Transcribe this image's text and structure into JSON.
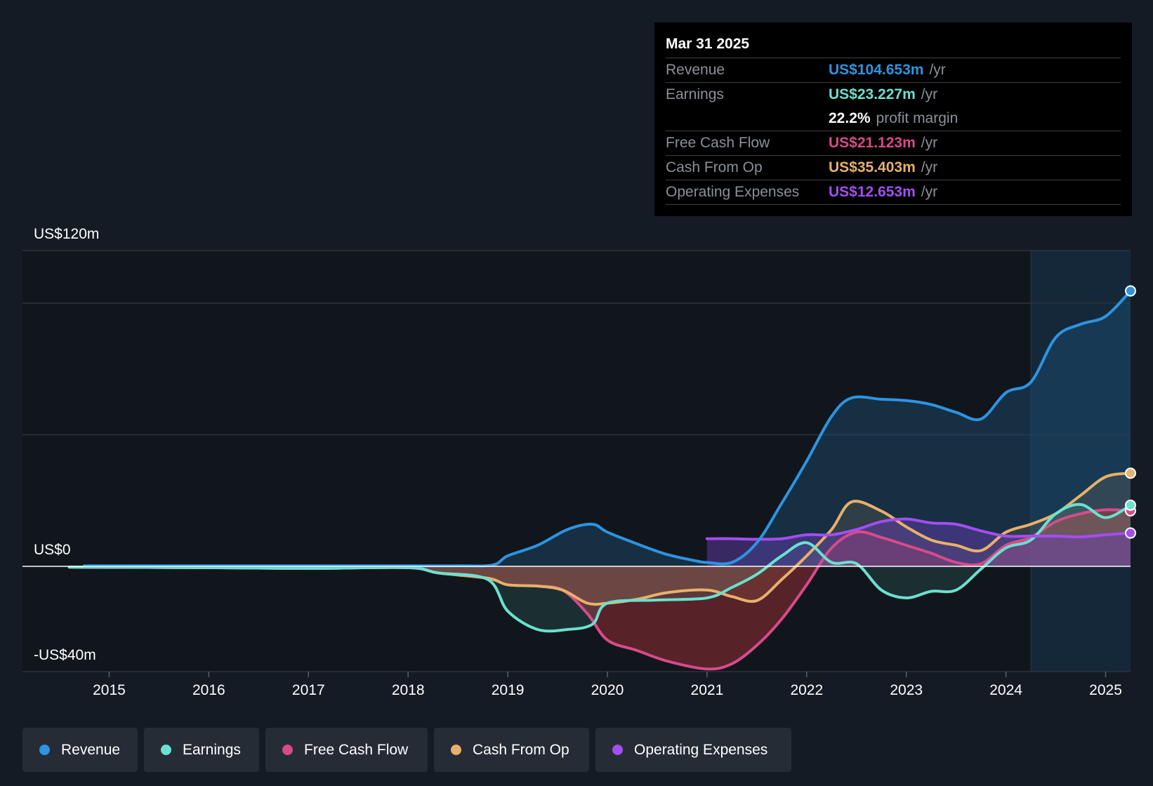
{
  "tooltip": {
    "date": "Mar 31 2025",
    "rows": [
      {
        "label": "Revenue",
        "value": "US$104.653m",
        "unit": "/yr",
        "color": "#2d94e2"
      },
      {
        "label": "Earnings",
        "value": "US$23.227m",
        "unit": "/yr",
        "color": "#6be0d0"
      },
      {
        "label": "",
        "value": "22.2%",
        "unit": "profit margin",
        "color": "#ffffff"
      },
      {
        "label": "Free Cash Flow",
        "value": "US$21.123m",
        "unit": "/yr",
        "color": "#d64b8a"
      },
      {
        "label": "Cash From Op",
        "value": "US$35.403m",
        "unit": "/yr",
        "color": "#e8b06a"
      },
      {
        "label": "Operating Expenses",
        "value": "US$12.653m",
        "unit": "/yr",
        "color": "#a24ef0"
      }
    ]
  },
  "legend": [
    {
      "label": "Revenue",
      "color": "#2d94e2"
    },
    {
      "label": "Earnings",
      "color": "#6be0d0"
    },
    {
      "label": "Free Cash Flow",
      "color": "#d64b8a"
    },
    {
      "label": "Cash From Op",
      "color": "#e8b06a"
    },
    {
      "label": "Operating Expenses",
      "color": "#a24ef0"
    }
  ],
  "chart_data": {
    "type": "line",
    "title": "",
    "y_labels": {
      "top": "US$120m",
      "zero": "US$0",
      "bottom": "-US$40m"
    },
    "ylim": [
      -40,
      120
    ],
    "xlim": [
      2014.13,
      2025.25
    ],
    "x_ticks": [
      2015,
      2016,
      2017,
      2018,
      2019,
      2020,
      2021,
      2022,
      2023,
      2024,
      2025
    ],
    "x_tick_labels": [
      "2015",
      "2016",
      "2017",
      "2018",
      "2019",
      "2020",
      "2021",
      "2022",
      "2023",
      "2024",
      "2025"
    ],
    "gridlines": [
      -40,
      0,
      50,
      100,
      120
    ],
    "highlight_start": 2024.25,
    "series": [
      {
        "name": "Revenue",
        "color": "#2d94e2",
        "x": [
          2014.75,
          2016,
          2017,
          2018,
          2018.5,
          2018.85,
          2019.0,
          2019.3,
          2019.6,
          2019.85,
          2020.0,
          2020.3,
          2020.6,
          2020.9,
          2021.0,
          2021.25,
          2021.5,
          2021.75,
          2022.0,
          2022.25,
          2022.45,
          2022.75,
          2023.0,
          2023.25,
          2023.5,
          2023.75,
          2024.0,
          2024.25,
          2024.5,
          2024.75,
          2025.0,
          2025.25
        ],
        "y": [
          0.2,
          0.2,
          0.2,
          0.2,
          0.2,
          0.5,
          4,
          8,
          14,
          16,
          13,
          8.5,
          4.5,
          2,
          1.5,
          1.5,
          9,
          24,
          40,
          57,
          64,
          63.5,
          63,
          61.5,
          58.5,
          56,
          66,
          70,
          87,
          92,
          95,
          104.653
        ]
      },
      {
        "name": "Earnings",
        "color": "#6be0d0",
        "x": [
          2014.6,
          2016,
          2017,
          2018,
          2018.3,
          2018.8,
          2019.0,
          2019.3,
          2019.6,
          2019.85,
          2020.0,
          2020.5,
          2021.0,
          2021.25,
          2021.5,
          2021.75,
          2022.0,
          2022.25,
          2022.5,
          2022.75,
          2023.0,
          2023.25,
          2023.5,
          2023.75,
          2024.0,
          2024.25,
          2024.5,
          2024.75,
          2025.0,
          2025.25
        ],
        "y": [
          -0.3,
          -0.5,
          -0.8,
          -0.5,
          -2.5,
          -5,
          -17,
          -24,
          -24,
          -22,
          -14,
          -12.8,
          -12,
          -8,
          -3,
          4,
          9,
          1.5,
          1,
          -9,
          -12,
          -9.5,
          -9,
          -1,
          7,
          10,
          20,
          23.5,
          18.5,
          23.227
        ]
      },
      {
        "name": "Free Cash Flow",
        "color": "#d64b8a",
        "x": [
          2014.6,
          2016,
          2017,
          2018,
          2018.3,
          2018.8,
          2019.0,
          2019.3,
          2019.55,
          2019.8,
          2020.0,
          2020.3,
          2020.6,
          2021.0,
          2021.25,
          2021.5,
          2021.75,
          2022.0,
          2022.25,
          2022.5,
          2022.75,
          2023.0,
          2023.25,
          2023.5,
          2023.75,
          2024.0,
          2024.25,
          2024.5,
          2024.75,
          2025.0,
          2025.25
        ],
        "y": [
          -0.3,
          -0.5,
          -0.8,
          -0.5,
          -2.5,
          -4.5,
          -7,
          -7.5,
          -9,
          -18,
          -28,
          -32,
          -36,
          -39,
          -37,
          -30,
          -20,
          -7,
          7,
          13,
          11,
          8,
          5,
          1.5,
          1,
          8,
          11,
          17,
          20,
          21.5,
          21.123
        ]
      },
      {
        "name": "Cash From Op",
        "color": "#e8b06a",
        "x": [
          2014.6,
          2016,
          2017,
          2018,
          2018.3,
          2018.8,
          2019.0,
          2019.3,
          2019.55,
          2019.8,
          2020.0,
          2020.3,
          2020.6,
          2021.0,
          2021.25,
          2021.5,
          2021.75,
          2022.0,
          2022.25,
          2022.45,
          2022.75,
          2023.0,
          2023.25,
          2023.5,
          2023.75,
          2024.0,
          2024.25,
          2024.5,
          2024.75,
          2025.0,
          2025.25
        ],
        "y": [
          -0.3,
          -0.5,
          -0.8,
          -0.5,
          -2.5,
          -4.5,
          -7,
          -7.5,
          -9,
          -14,
          -14,
          -12.5,
          -10,
          -9,
          -11.5,
          -13,
          -5,
          4,
          14,
          24.5,
          21,
          15,
          10,
          8,
          6,
          13,
          16,
          20,
          27,
          34,
          35.403
        ]
      },
      {
        "name": "Operating Expenses",
        "color": "#a24ef0",
        "x": [
          2021.0,
          2021.25,
          2021.5,
          2021.75,
          2022.0,
          2022.25,
          2022.5,
          2022.75,
          2023.0,
          2023.25,
          2023.5,
          2023.75,
          2024.0,
          2024.25,
          2024.5,
          2024.75,
          2025.0,
          2025.25
        ],
        "y": [
          10.5,
          10.5,
          10.3,
          10.5,
          12,
          12,
          14,
          17,
          18,
          16.5,
          16,
          13.5,
          11.5,
          11.5,
          11.5,
          11.2,
          12,
          12.653
        ]
      }
    ]
  }
}
